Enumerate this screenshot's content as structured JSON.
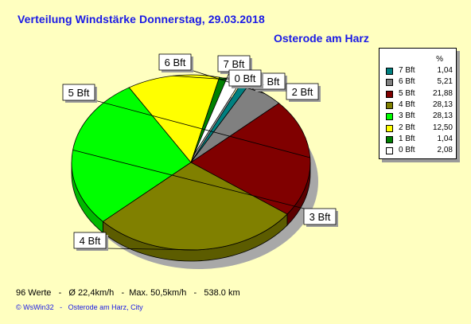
{
  "title": "Verteilung Windstärke  Donnerstag, 29.03.2018",
  "location": "Osterode am Harz",
  "summary": "96 Werte   -   Ø 22,4km/h   -  Max. 50,5km/h   -   538.0 km",
  "footer": "© WsWin32   -   Osterode am Harz, City",
  "legend": {
    "header": "%"
  },
  "chart_data": {
    "type": "pie",
    "title": "Verteilung Windstärke  Donnerstag, 29.03.2018",
    "subtitle": "Osterode am Harz",
    "legend_position": "top-right",
    "slices": [
      {
        "label": "7 Bft",
        "value": 1.04,
        "value_text": "1,04",
        "color": "#008080"
      },
      {
        "label": "6 Bft",
        "value": 5.21,
        "value_text": "5,21",
        "color": "#808080"
      },
      {
        "label": "5 Bft",
        "value": 21.88,
        "value_text": "21,88",
        "color": "#800000"
      },
      {
        "label": "4 Bft",
        "value": 28.13,
        "value_text": "28,13",
        "color": "#808000"
      },
      {
        "label": "3 Bft",
        "value": 28.13,
        "value_text": "28,13",
        "color": "#00ff00"
      },
      {
        "label": "2 Bft",
        "value": 12.5,
        "value_text": "12,50",
        "color": "#ffff00"
      },
      {
        "label": "1 Bft",
        "value": 1.04,
        "value_text": "1,04",
        "color": "#008000"
      },
      {
        "label": "0 Bft",
        "value": 2.08,
        "value_text": "2,08",
        "color": "#ffffff"
      }
    ]
  }
}
